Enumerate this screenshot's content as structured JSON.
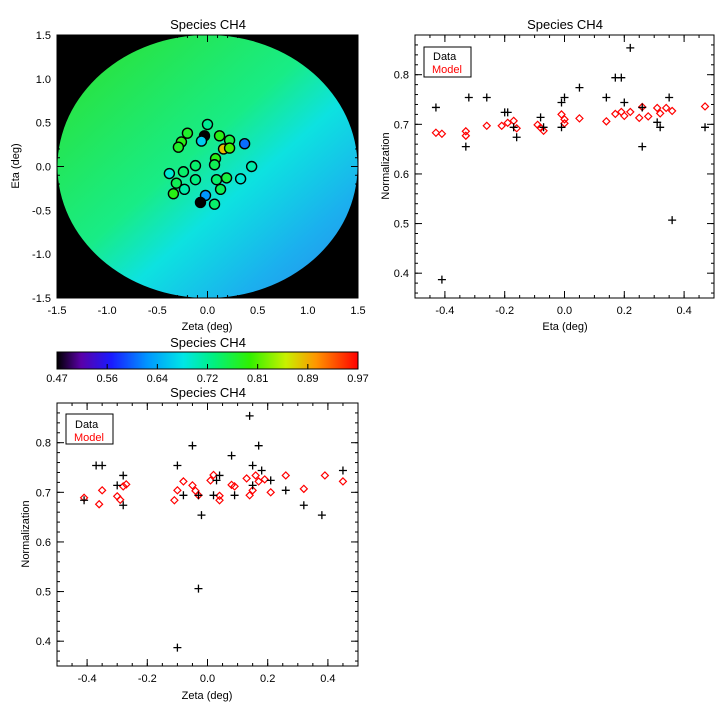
{
  "chart_data": [
    {
      "id": "map",
      "type": "scatter",
      "title": "Species CH4",
      "xlabel": "Zeta (deg)",
      "ylabel": "Eta (deg)",
      "xlim": [
        -1.5,
        1.5
      ],
      "ylim": [
        -1.5,
        1.5
      ],
      "xticks": [
        "-1.5",
        "-1.0",
        "-0.5",
        "0.0",
        "0.5",
        "1.0",
        "1.5"
      ],
      "yticks": [
        "-1.5",
        "-1.0",
        "-0.5",
        "0.0",
        "0.5",
        "1.0",
        "1.5"
      ],
      "background": "model field on unit disk (black outside)",
      "points": [
        {
          "x": 0.0,
          "y": 0.48,
          "v": 0.72
        },
        {
          "x": -0.2,
          "y": 0.38,
          "v": 0.77
        },
        {
          "x": -0.03,
          "y": 0.35,
          "v": 0.47
        },
        {
          "x": 0.12,
          "y": 0.35,
          "v": 0.78
        },
        {
          "x": 0.22,
          "y": 0.3,
          "v": 0.76
        },
        {
          "x": 0.37,
          "y": 0.26,
          "v": 0.6
        },
        {
          "x": -0.26,
          "y": 0.28,
          "v": 0.78
        },
        {
          "x": -0.29,
          "y": 0.22,
          "v": 0.77
        },
        {
          "x": -0.06,
          "y": 0.29,
          "v": 0.66
        },
        {
          "x": 0.16,
          "y": 0.2,
          "v": 0.88
        },
        {
          "x": 0.22,
          "y": 0.21,
          "v": 0.8
        },
        {
          "x": 0.08,
          "y": 0.09,
          "v": 0.78
        },
        {
          "x": 0.07,
          "y": 0.02,
          "v": 0.75
        },
        {
          "x": -0.12,
          "y": 0.01,
          "v": 0.74
        },
        {
          "x": 0.44,
          "y": 0.0,
          "v": 0.71
        },
        {
          "x": -0.24,
          "y": -0.06,
          "v": 0.74
        },
        {
          "x": -0.38,
          "y": -0.08,
          "v": 0.69
        },
        {
          "x": -0.12,
          "y": -0.15,
          "v": 0.73
        },
        {
          "x": 0.09,
          "y": -0.15,
          "v": 0.74
        },
        {
          "x": 0.19,
          "y": -0.13,
          "v": 0.76
        },
        {
          "x": 0.33,
          "y": -0.14,
          "v": 0.69
        },
        {
          "x": -0.31,
          "y": -0.19,
          "v": 0.75
        },
        {
          "x": -0.23,
          "y": -0.26,
          "v": 0.71
        },
        {
          "x": 0.13,
          "y": -0.26,
          "v": 0.75
        },
        {
          "x": -0.34,
          "y": -0.31,
          "v": 0.78
        },
        {
          "x": -0.02,
          "y": -0.33,
          "v": 0.62
        },
        {
          "x": -0.07,
          "y": -0.41,
          "v": 0.47
        },
        {
          "x": 0.07,
          "y": -0.43,
          "v": 0.74
        }
      ]
    },
    {
      "id": "colorbar",
      "type": "heatmap",
      "title": "Species CH4",
      "range": [
        0.47,
        0.97
      ],
      "tick_labels": [
        "0.47",
        "0.56",
        "0.64",
        "0.72",
        "0.81",
        "0.89",
        "0.97"
      ]
    },
    {
      "id": "eta",
      "type": "scatter",
      "title": "Species CH4",
      "xlabel": "Eta (deg)",
      "ylabel": "Normalization",
      "xlim": [
        -0.5,
        0.5
      ],
      "ylim": [
        0.35,
        0.88
      ],
      "xticks": [
        "-0.4",
        "-0.2",
        "0.0",
        "0.2",
        "0.4"
      ],
      "yticks": [
        "0.4",
        "0.5",
        "0.6",
        "0.7",
        "0.8"
      ],
      "legend": [
        "Data",
        "Model"
      ],
      "data_points": [
        {
          "x": -0.43,
          "y": 0.734
        },
        {
          "x": -0.41,
          "y": 0.387
        },
        {
          "x": -0.33,
          "y": 0.655
        },
        {
          "x": -0.32,
          "y": 0.754
        },
        {
          "x": -0.26,
          "y": 0.754
        },
        {
          "x": -0.2,
          "y": 0.724
        },
        {
          "x": -0.19,
          "y": 0.724
        },
        {
          "x": -0.17,
          "y": 0.694
        },
        {
          "x": -0.16,
          "y": 0.674
        },
        {
          "x": -0.08,
          "y": 0.714
        },
        {
          "x": -0.07,
          "y": 0.694
        },
        {
          "x": -0.01,
          "y": 0.744
        },
        {
          "x": -0.01,
          "y": 0.694
        },
        {
          "x": 0.0,
          "y": 0.754
        },
        {
          "x": 0.05,
          "y": 0.774
        },
        {
          "x": 0.14,
          "y": 0.754
        },
        {
          "x": 0.17,
          "y": 0.794
        },
        {
          "x": 0.19,
          "y": 0.794
        },
        {
          "x": 0.2,
          "y": 0.744
        },
        {
          "x": 0.22,
          "y": 0.854
        },
        {
          "x": 0.26,
          "y": 0.734
        },
        {
          "x": 0.26,
          "y": 0.655
        },
        {
          "x": 0.31,
          "y": 0.704
        },
        {
          "x": 0.32,
          "y": 0.694
        },
        {
          "x": 0.35,
          "y": 0.754
        },
        {
          "x": 0.36,
          "y": 0.507
        },
        {
          "x": 0.47,
          "y": 0.694
        }
      ],
      "model_points": [
        {
          "x": -0.43,
          "y": 0.683
        },
        {
          "x": -0.41,
          "y": 0.681
        },
        {
          "x": -0.33,
          "y": 0.686
        },
        {
          "x": -0.33,
          "y": 0.677
        },
        {
          "x": -0.26,
          "y": 0.697
        },
        {
          "x": -0.21,
          "y": 0.697
        },
        {
          "x": -0.19,
          "y": 0.703
        },
        {
          "x": -0.17,
          "y": 0.707
        },
        {
          "x": -0.16,
          "y": 0.692
        },
        {
          "x": -0.09,
          "y": 0.699
        },
        {
          "x": -0.08,
          "y": 0.693
        },
        {
          "x": -0.07,
          "y": 0.687
        },
        {
          "x": -0.01,
          "y": 0.72
        },
        {
          "x": 0.0,
          "y": 0.71
        },
        {
          "x": 0.0,
          "y": 0.702
        },
        {
          "x": 0.05,
          "y": 0.712
        },
        {
          "x": 0.14,
          "y": 0.706
        },
        {
          "x": 0.17,
          "y": 0.721
        },
        {
          "x": 0.19,
          "y": 0.725
        },
        {
          "x": 0.2,
          "y": 0.717
        },
        {
          "x": 0.22,
          "y": 0.725
        },
        {
          "x": 0.25,
          "y": 0.713
        },
        {
          "x": 0.26,
          "y": 0.735
        },
        {
          "x": 0.28,
          "y": 0.716
        },
        {
          "x": 0.31,
          "y": 0.733
        },
        {
          "x": 0.32,
          "y": 0.722
        },
        {
          "x": 0.34,
          "y": 0.733
        },
        {
          "x": 0.36,
          "y": 0.727
        },
        {
          "x": 0.47,
          "y": 0.736
        }
      ]
    },
    {
      "id": "zeta",
      "type": "scatter",
      "title": "Species CH4",
      "xlabel": "Zeta (deg)",
      "ylabel": "Normalization",
      "xlim": [
        -0.5,
        0.5
      ],
      "ylim": [
        0.35,
        0.88
      ],
      "xticks": [
        "-0.4",
        "-0.2",
        "0.0",
        "0.2",
        "0.4"
      ],
      "yticks": [
        "0.4",
        "0.5",
        "0.6",
        "0.7",
        "0.8"
      ],
      "legend": [
        "Data",
        "Model"
      ],
      "data_points": [
        {
          "x": -0.41,
          "y": 0.684
        },
        {
          "x": -0.37,
          "y": 0.754
        },
        {
          "x": -0.35,
          "y": 0.754
        },
        {
          "x": -0.3,
          "y": 0.714
        },
        {
          "x": -0.28,
          "y": 0.734
        },
        {
          "x": -0.28,
          "y": 0.674
        },
        {
          "x": -0.1,
          "y": 0.754
        },
        {
          "x": -0.1,
          "y": 0.387
        },
        {
          "x": -0.08,
          "y": 0.694
        },
        {
          "x": -0.05,
          "y": 0.794
        },
        {
          "x": -0.03,
          "y": 0.694
        },
        {
          "x": -0.03,
          "y": 0.506
        },
        {
          "x": -0.02,
          "y": 0.654
        },
        {
          "x": 0.02,
          "y": 0.694
        },
        {
          "x": 0.03,
          "y": 0.724
        },
        {
          "x": 0.04,
          "y": 0.734
        },
        {
          "x": 0.08,
          "y": 0.774
        },
        {
          "x": 0.09,
          "y": 0.694
        },
        {
          "x": 0.14,
          "y": 0.854
        },
        {
          "x": 0.15,
          "y": 0.754
        },
        {
          "x": 0.15,
          "y": 0.714
        },
        {
          "x": 0.17,
          "y": 0.794
        },
        {
          "x": 0.18,
          "y": 0.744
        },
        {
          "x": 0.21,
          "y": 0.724
        },
        {
          "x": 0.26,
          "y": 0.704
        },
        {
          "x": 0.32,
          "y": 0.674
        },
        {
          "x": 0.38,
          "y": 0.654
        },
        {
          "x": 0.45,
          "y": 0.744
        }
      ],
      "model_points": [
        {
          "x": -0.41,
          "y": 0.689
        },
        {
          "x": -0.36,
          "y": 0.676
        },
        {
          "x": -0.35,
          "y": 0.704
        },
        {
          "x": -0.3,
          "y": 0.692
        },
        {
          "x": -0.29,
          "y": 0.685
        },
        {
          "x": -0.28,
          "y": 0.712
        },
        {
          "x": -0.27,
          "y": 0.716
        },
        {
          "x": -0.11,
          "y": 0.684
        },
        {
          "x": -0.1,
          "y": 0.704
        },
        {
          "x": -0.08,
          "y": 0.722
        },
        {
          "x": -0.05,
          "y": 0.714
        },
        {
          "x": -0.04,
          "y": 0.703
        },
        {
          "x": -0.03,
          "y": 0.694
        },
        {
          "x": 0.01,
          "y": 0.724
        },
        {
          "x": 0.02,
          "y": 0.735
        },
        {
          "x": 0.04,
          "y": 0.693
        },
        {
          "x": 0.04,
          "y": 0.684
        },
        {
          "x": 0.08,
          "y": 0.715
        },
        {
          "x": 0.09,
          "y": 0.712
        },
        {
          "x": 0.13,
          "y": 0.728
        },
        {
          "x": 0.14,
          "y": 0.694
        },
        {
          "x": 0.15,
          "y": 0.704
        },
        {
          "x": 0.16,
          "y": 0.734
        },
        {
          "x": 0.17,
          "y": 0.722
        },
        {
          "x": 0.19,
          "y": 0.726
        },
        {
          "x": 0.21,
          "y": 0.7
        },
        {
          "x": 0.26,
          "y": 0.734
        },
        {
          "x": 0.32,
          "y": 0.707
        },
        {
          "x": 0.39,
          "y": 0.734
        },
        {
          "x": 0.45,
          "y": 0.722
        }
      ]
    }
  ],
  "colors": {
    "data_marker": "#000000",
    "model_marker": "#ff0000",
    "map_background": "#000000",
    "axis": "#000000"
  }
}
